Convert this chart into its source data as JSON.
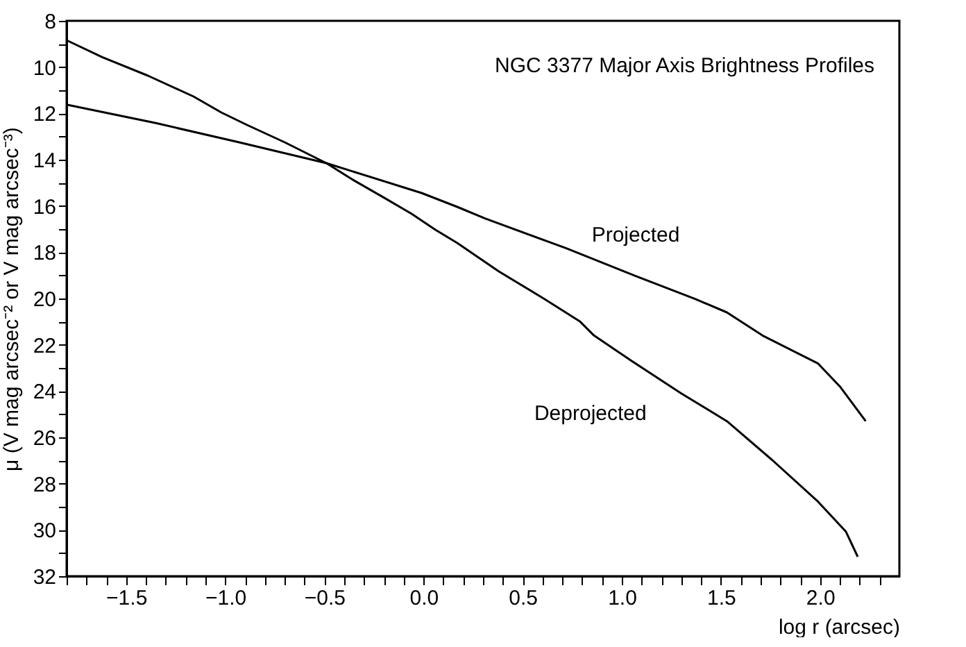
{
  "chart_data": {
    "type": "line",
    "title": "NGC 3377 Major Axis Brightness Profiles",
    "xlabel": "log r (arcsec)",
    "ylabel": "μ  (V mag arcsec⁻²  or  V mag arcsec⁻³)",
    "series": [
      {
        "name": "Projected",
        "color": "#000000",
        "x": [
          -1.8,
          -1.35,
          -0.93,
          -0.49,
          -0.01,
          0.17,
          0.31,
          0.72,
          1.07,
          1.37,
          1.53,
          1.71,
          1.99,
          2.1,
          2.23
        ],
        "values": [
          11.62,
          12.42,
          13.25,
          14.15,
          15.44,
          16.04,
          16.54,
          17.83,
          19.03,
          20.02,
          20.6,
          21.6,
          22.81,
          23.8,
          25.3
        ]
      },
      {
        "name": "Deprojected",
        "color": "#000000",
        "x": [
          -1.8,
          -1.62,
          -1.39,
          -1.16,
          -1.02,
          -0.89,
          -0.7,
          -0.49,
          -0.36,
          -0.2,
          -0.06,
          0.06,
          0.17,
          0.38,
          0.61,
          0.79,
          0.86,
          1.05,
          1.3,
          1.53,
          1.76,
          1.99,
          2.13,
          2.19
        ],
        "values": [
          8.84,
          9.57,
          10.37,
          11.27,
          11.96,
          12.5,
          13.25,
          14.15,
          14.85,
          15.64,
          16.34,
          17.03,
          17.6,
          18.83,
          20.02,
          21.0,
          21.6,
          22.7,
          24.1,
          25.3,
          26.99,
          28.78,
          30.07,
          31.16
        ]
      }
    ],
    "xlim": [
      -1.8,
      2.4
    ],
    "ylim": [
      32,
      8
    ],
    "xticks": [
      {
        "value": -1.8,
        "label": null
      },
      {
        "value": -1.7,
        "label": null
      },
      {
        "value": -1.6,
        "label": null
      },
      {
        "value": -1.5,
        "label": "−1.5"
      },
      {
        "value": -1.4,
        "label": null
      },
      {
        "value": -1.3,
        "label": null
      },
      {
        "value": -1.2,
        "label": null
      },
      {
        "value": -1.1,
        "label": null
      },
      {
        "value": -1.0,
        "label": "−1.0"
      },
      {
        "value": -0.9,
        "label": null
      },
      {
        "value": -0.8,
        "label": null
      },
      {
        "value": -0.7,
        "label": null
      },
      {
        "value": -0.6,
        "label": null
      },
      {
        "value": -0.5,
        "label": "−0.5"
      },
      {
        "value": -0.4,
        "label": null
      },
      {
        "value": -0.3,
        "label": null
      },
      {
        "value": -0.2,
        "label": null
      },
      {
        "value": -0.1,
        "label": null
      },
      {
        "value": 0.0,
        "label": "0.0"
      },
      {
        "value": 0.1,
        "label": null
      },
      {
        "value": 0.2,
        "label": null
      },
      {
        "value": 0.3,
        "label": null
      },
      {
        "value": 0.4,
        "label": null
      },
      {
        "value": 0.5,
        "label": "0.5"
      },
      {
        "value": 0.6,
        "label": null
      },
      {
        "value": 0.7,
        "label": null
      },
      {
        "value": 0.8,
        "label": null
      },
      {
        "value": 0.9,
        "label": null
      },
      {
        "value": 1.0,
        "label": "1.0"
      },
      {
        "value": 1.1,
        "label": null
      },
      {
        "value": 1.2,
        "label": null
      },
      {
        "value": 1.3,
        "label": null
      },
      {
        "value": 1.4,
        "label": null
      },
      {
        "value": 1.5,
        "label": "1.5"
      },
      {
        "value": 1.6,
        "label": null
      },
      {
        "value": 1.7,
        "label": null
      },
      {
        "value": 1.8,
        "label": null
      },
      {
        "value": 1.9,
        "label": null
      },
      {
        "value": 2.0,
        "label": "2.0"
      },
      {
        "value": 2.1,
        "label": null
      },
      {
        "value": 2.2,
        "label": null
      },
      {
        "value": 2.3,
        "label": null
      }
    ],
    "yticks": [
      8,
      {
        "value": 9,
        "label": null
      },
      10,
      {
        "value": 11,
        "label": null
      },
      12,
      {
        "value": 13,
        "label": null
      },
      14,
      {
        "value": 15,
        "label": null
      },
      16,
      {
        "value": 17,
        "label": null
      },
      18,
      {
        "value": 19,
        "label": null
      },
      20,
      {
        "value": 21,
        "label": null
      },
      22,
      {
        "value": 23,
        "label": null
      },
      24,
      {
        "value": 25,
        "label": null
      },
      26,
      {
        "value": 27,
        "label": null
      },
      28,
      {
        "value": 29,
        "label": null
      },
      30,
      {
        "value": 31,
        "label": null
      },
      32
    ],
    "grid": false,
    "marker": "none",
    "line_style": "solid"
  }
}
